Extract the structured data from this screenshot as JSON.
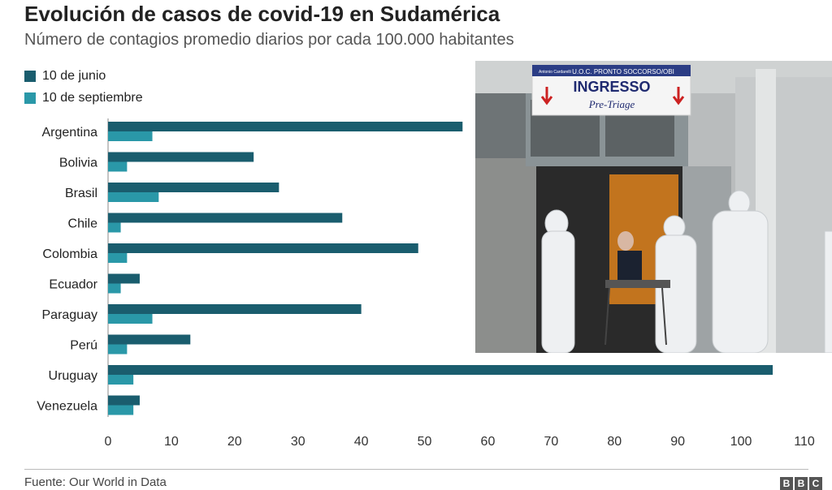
{
  "header": {
    "title": "Evolución de casos de covid-19 en Sudamérica",
    "subtitle": "Número de contagios promedio diarios por cada 100.000 habitantes"
  },
  "legend": [
    {
      "label": "10 de junio",
      "color": "#1a5d6e"
    },
    {
      "label": "10 de septiembre",
      "color": "#2a98a8"
    }
  ],
  "chart_data": {
    "type": "bar",
    "orientation": "horizontal",
    "categories": [
      "Argentina",
      "Bolivia",
      "Brasil",
      "Chile",
      "Colombia",
      "Ecuador",
      "Paraguay",
      "Perú",
      "Uruguay",
      "Venezuela"
    ],
    "series": [
      {
        "name": "10 de junio",
        "color": "#1a5d6e",
        "values": [
          56,
          23,
          27,
          37,
          49,
          5,
          40,
          13,
          105,
          5
        ]
      },
      {
        "name": "10 de septiembre",
        "color": "#2a98a8",
        "values": [
          7,
          3,
          8,
          2,
          3,
          2,
          7,
          3,
          4,
          4
        ]
      }
    ],
    "xlim": [
      0,
      110
    ],
    "xticks": [
      0,
      10,
      20,
      30,
      40,
      50,
      60,
      70,
      80,
      90,
      100,
      110
    ],
    "title": "Evolución de casos de covid-19 en Sudamérica",
    "subtitle": "Número de contagios promedio diarios por cada 100.000 habitantes",
    "legend_position": "top-left",
    "grid": false
  },
  "photo": {
    "sign_header": "U.O.C. PRONTO SOCCORSO/OBI",
    "sign_title": "INGRESSO",
    "sign_subtitle": "Pre-Triage",
    "sign_logo": "Antonio Cardarelli"
  },
  "footer": {
    "source": "Fuente: Our World in Data",
    "logo_letters": [
      "B",
      "B",
      "C"
    ]
  }
}
